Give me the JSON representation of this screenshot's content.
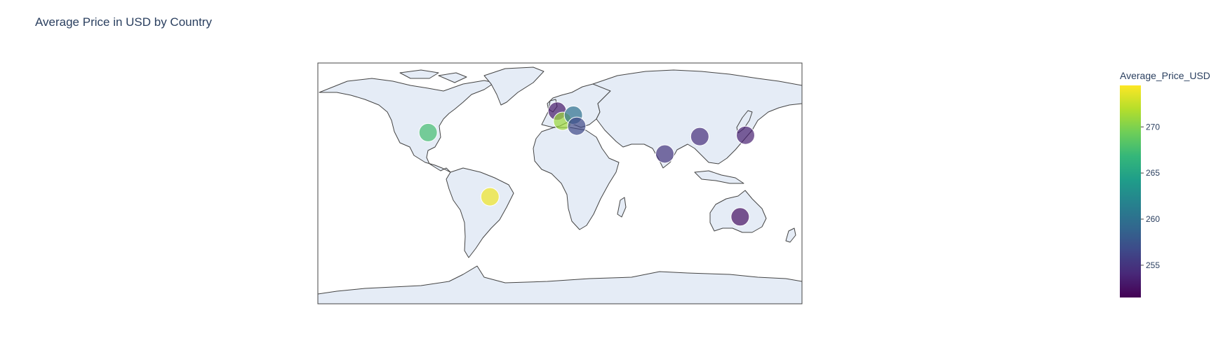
{
  "chart_data": {
    "type": "scatter-geo",
    "title": "Average Price in USD by Country",
    "colorbar": {
      "title": "Average_Price_USD",
      "colorscale": "viridis",
      "range": [
        251.5,
        274.5
      ],
      "ticks": [
        255,
        260,
        265,
        270
      ],
      "tick_labels": [
        "255",
        "260",
        "265",
        "270"
      ]
    },
    "projection": "equirectangular",
    "land_color": "#e5ecf6",
    "coast_color": "#444444",
    "points": [
      {
        "lon": -98,
        "lat": 38,
        "value": 267.5
      },
      {
        "lon": -52,
        "lat": -10,
        "value": 274.0
      },
      {
        "lon": -2,
        "lat": 54,
        "value": 253.0
      },
      {
        "lon": 2,
        "lat": 46.5,
        "value": 271.0
      },
      {
        "lon": 10,
        "lat": 51,
        "value": 260.0
      },
      {
        "lon": 12.5,
        "lat": 42.8,
        "value": 256.5
      },
      {
        "lon": 78,
        "lat": 22,
        "value": 255.0
      },
      {
        "lon": 104,
        "lat": 35,
        "value": 254.5
      },
      {
        "lon": 138,
        "lat": 36,
        "value": 253.5
      },
      {
        "lon": 134,
        "lat": -25,
        "value": 252.5
      }
    ]
  }
}
